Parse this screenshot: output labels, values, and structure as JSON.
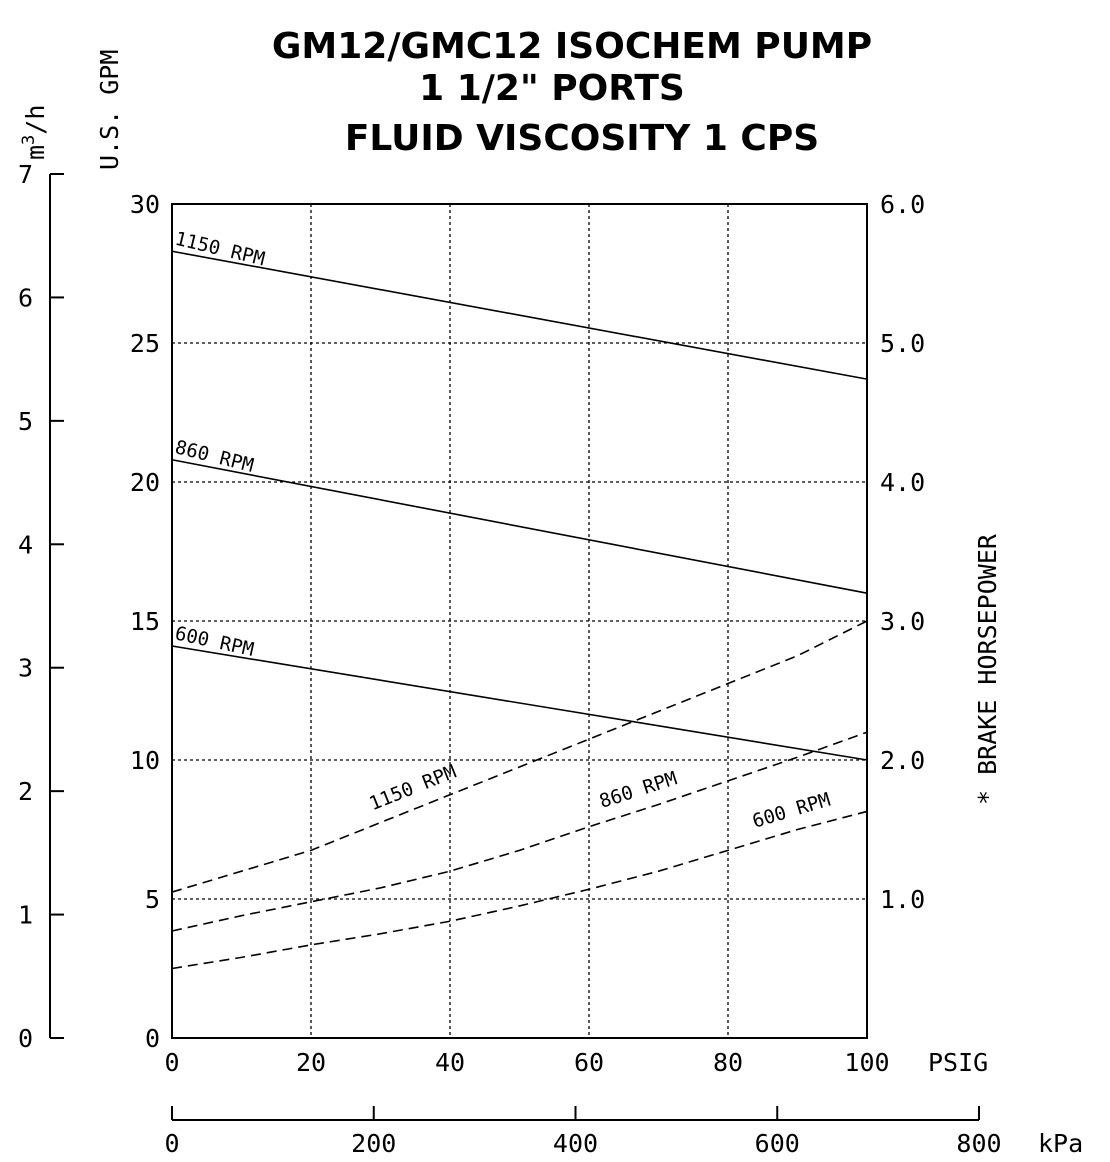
{
  "chart_data": {
    "type": "line",
    "title_lines": [
      "GM12/GMC12 ISOCHEM PUMP",
      "1 1/2\" PORTS",
      "FLUID VISCOSITY 1 CPS"
    ],
    "x_axis": {
      "label": "PSIG",
      "range": [
        0,
        100
      ],
      "ticks": [
        "0",
        "20",
        "40",
        "60",
        "80",
        "100"
      ]
    },
    "x2_axis": {
      "label": "kPa",
      "range": [
        0,
        800
      ],
      "ticks": [
        "0",
        "200",
        "400",
        "600",
        "800"
      ]
    },
    "y_axis": {
      "label": "U.S. GPM",
      "range": [
        0,
        30
      ],
      "ticks": [
        "0",
        "5",
        "10",
        "15",
        "20",
        "25",
        "30"
      ]
    },
    "y_outer_axis": {
      "label_base": "m",
      "label_sup": "3",
      "label_tail": "/h",
      "range": [
        0,
        7
      ],
      "ticks": [
        "0",
        "1",
        "2",
        "3",
        "4",
        "5",
        "6",
        "7"
      ]
    },
    "y2_axis": {
      "label": "* BRAKE HORSEPOWER",
      "range": [
        0,
        6
      ],
      "ticks": [
        "1.0",
        "2.0",
        "3.0",
        "4.0",
        "5.0",
        "6.0"
      ]
    },
    "grid": "dashed",
    "flow_series": [
      {
        "name": "1150 RPM",
        "x": [
          0,
          100
        ],
        "y": [
          28.3,
          23.7
        ]
      },
      {
        "name": "860 RPM",
        "x": [
          0,
          100
        ],
        "y": [
          20.8,
          16.0
        ]
      },
      {
        "name": "600 RPM",
        "x": [
          0,
          100
        ],
        "y": [
          14.1,
          10.0
        ]
      }
    ],
    "power_series": [
      {
        "name": "1150 RPM",
        "x": [
          0,
          10,
          20,
          30,
          40,
          50,
          60,
          70,
          80,
          90,
          100
        ],
        "y": [
          1.05,
          1.2,
          1.35,
          1.55,
          1.75,
          1.95,
          2.15,
          2.35,
          2.55,
          2.75,
          3.0
        ]
      },
      {
        "name": "860 RPM",
        "x": [
          0,
          10,
          20,
          30,
          40,
          50,
          60,
          70,
          80,
          90,
          100
        ],
        "y": [
          0.77,
          0.88,
          0.98,
          1.08,
          1.2,
          1.35,
          1.52,
          1.68,
          1.85,
          2.02,
          2.2
        ]
      },
      {
        "name": "600 RPM",
        "x": [
          0,
          10,
          20,
          30,
          40,
          50,
          60,
          70,
          80,
          90,
          100
        ],
        "y": [
          0.5,
          0.58,
          0.67,
          0.75,
          0.84,
          0.95,
          1.07,
          1.2,
          1.35,
          1.5,
          1.63
        ]
      }
    ]
  }
}
